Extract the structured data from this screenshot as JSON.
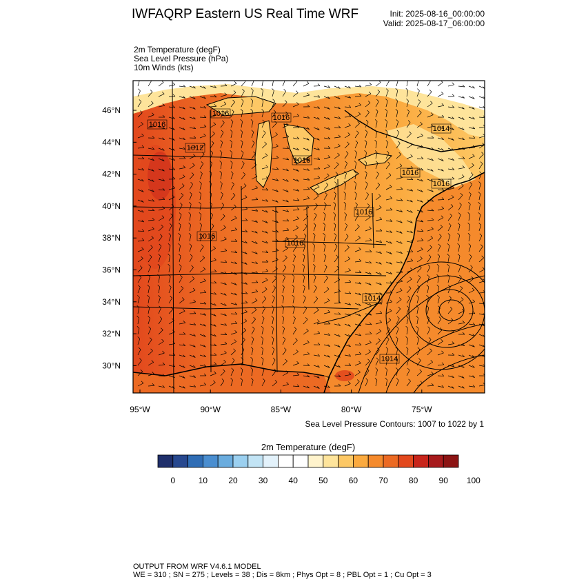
{
  "header": {
    "title": "IWFAQRP Eastern US Real Time WRF",
    "init": "Init: 2025-08-16_00:00:00",
    "valid": "Valid: 2025-08-17_06:00:00"
  },
  "fields": [
    "2m Temperature   (degF)",
    "Sea Level Pressure   (hPa)",
    "10m Winds   (kts)"
  ],
  "map": {
    "lat_labels": [
      "46°N",
      "44°N",
      "42°N",
      "40°N",
      "38°N",
      "36°N",
      "34°N",
      "32°N",
      "30°N"
    ],
    "lon_labels": [
      "95°W",
      "90°W",
      "85°W",
      "80°W",
      "75°W"
    ],
    "slp_contour_labels": [
      "1016",
      "1016",
      "1012",
      "1016",
      "1016",
      "1014",
      "1016",
      "1016",
      "1016",
      "1016",
      "1016",
      "1014",
      "1014"
    ],
    "contour_note": "Sea Level Pressure Contours: 1007 to 1022 by 1"
  },
  "colorbar": {
    "title": "2m Temperature  (degF)",
    "tick_labels": [
      "0",
      "10",
      "20",
      "30",
      "40",
      "50",
      "60",
      "70",
      "80",
      "90",
      "100"
    ],
    "colors": [
      "#1f2f6b",
      "#27488f",
      "#2f6db5",
      "#4a8ed0",
      "#6aacde",
      "#9bd0f0",
      "#c2e4f5",
      "#e3f2fb",
      "#ffffff",
      "#ffffff",
      "#fff3cc",
      "#fee49b",
      "#fdc865",
      "#fbaa3f",
      "#f58a2c",
      "#ec6a23",
      "#e2481d",
      "#c8251b",
      "#a71a1c",
      "#8c1414"
    ]
  },
  "footer": {
    "line1": "OUTPUT FROM WRF V4.6.1 MODEL",
    "line2": "WE = 310 ; SN = 275 ; Levels = 38 ; Dis = 8km ; Phys Opt = 8 ; PBL Opt = 1 ; Cu Opt = 3"
  }
}
